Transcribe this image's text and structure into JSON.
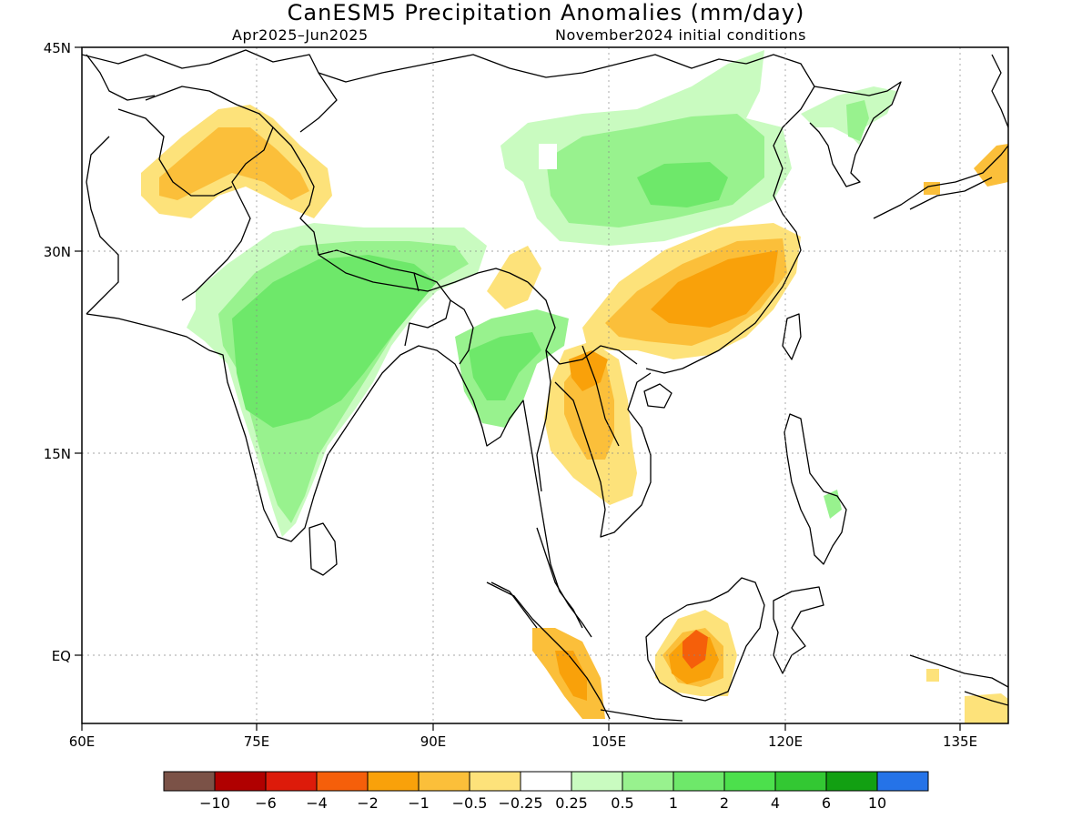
{
  "title": "CanESM5 Precipitation Anomalies (mm/day)",
  "subtitle_left": "Apr2025–Jun2025",
  "subtitle_right": "November2024 initial conditions",
  "lon_ticks": [
    "60E",
    "75E",
    "90E",
    "105E",
    "120E",
    "135E"
  ],
  "lat_ticks": [
    "45N",
    "30N",
    "15N",
    "EQ"
  ],
  "colorbar": {
    "colors": [
      "#7b5247",
      "#b00000",
      "#dd1b0a",
      "#f55f0a",
      "#f9a10a",
      "#fbbf3a",
      "#fde27a",
      "#ffffff",
      "#c9fbc0",
      "#98f28e",
      "#6ee86a",
      "#4ce04c",
      "#33c833",
      "#12a012",
      "#2573e8"
    ],
    "labels": [
      "−10",
      "−6",
      "−4",
      "−2",
      "−1",
      "−0.5",
      "−0.25",
      "0.25",
      "0.5",
      "1",
      "2",
      "4",
      "6",
      "10"
    ]
  },
  "colors": {
    "wet_1": "#c9fbc0",
    "wet_2": "#98f28e",
    "wet_3": "#6ee86a",
    "dry_1": "#fde27a",
    "dry_2": "#fbbf3a",
    "dry_3": "#f9a10a",
    "dry_4": "#f55f0a"
  }
}
